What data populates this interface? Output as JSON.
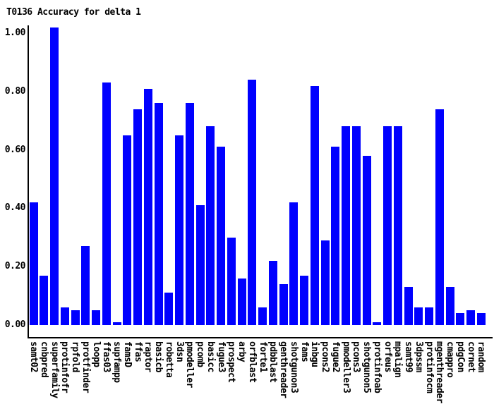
{
  "chart_data": {
    "type": "bar",
    "title": "T0136 Accuracy for delta 1",
    "xlabel": "",
    "ylabel": "",
    "ylim": [
      0,
      1.0
    ],
    "y_tick_values": [
      0.0,
      0.2,
      0.4,
      0.6,
      0.8,
      1.0
    ],
    "y_tick_labels": [
      "0.00",
      "0.20",
      "0.40",
      "0.60",
      "0.80",
      "1.00"
    ],
    "grid": "off",
    "legend": "none",
    "bar_color": "#0000ff",
    "axis_color": "#000000",
    "categories": [
      "samt02",
      "cnbpred",
      "superfamily",
      "protinfofr",
      "rpfold",
      "protfinder",
      "loopp",
      "ffas03",
      "supfampp",
      "famsD",
      "ffas",
      "raptor",
      "basicb",
      "robetta",
      "3dsn",
      "pmodeller",
      "pcomb",
      "basicc",
      "fugue3",
      "prospect",
      "arby",
      "orfblast",
      "forte1",
      "pdbblast",
      "genthreader",
      "shotgunon3",
      "fams",
      "inbgu",
      "pcons2",
      "fugue2",
      "pmodeller3",
      "pcons3",
      "shotgunon5",
      "protinfoab",
      "orfeus",
      "mpalign",
      "samt99",
      "3dpssm",
      "protinfocm",
      "mgenthreader",
      "cmappro",
      "pdgCon",
      "cornet",
      "random"
    ],
    "values": [
      0.42,
      0.17,
      1.02,
      0.06,
      0.05,
      0.27,
      0.05,
      0.83,
      0.01,
      0.65,
      0.74,
      0.81,
      0.76,
      0.11,
      0.65,
      0.76,
      0.41,
      0.68,
      0.61,
      0.3,
      0.16,
      0.84,
      0.06,
      0.22,
      0.14,
      0.42,
      0.17,
      0.82,
      0.29,
      0.61,
      0.68,
      0.68,
      0.58,
      0.01,
      0.68,
      0.68,
      0.13,
      0.06,
      0.06,
      0.74,
      0.13,
      0.04,
      0.05,
      0.04
    ]
  }
}
